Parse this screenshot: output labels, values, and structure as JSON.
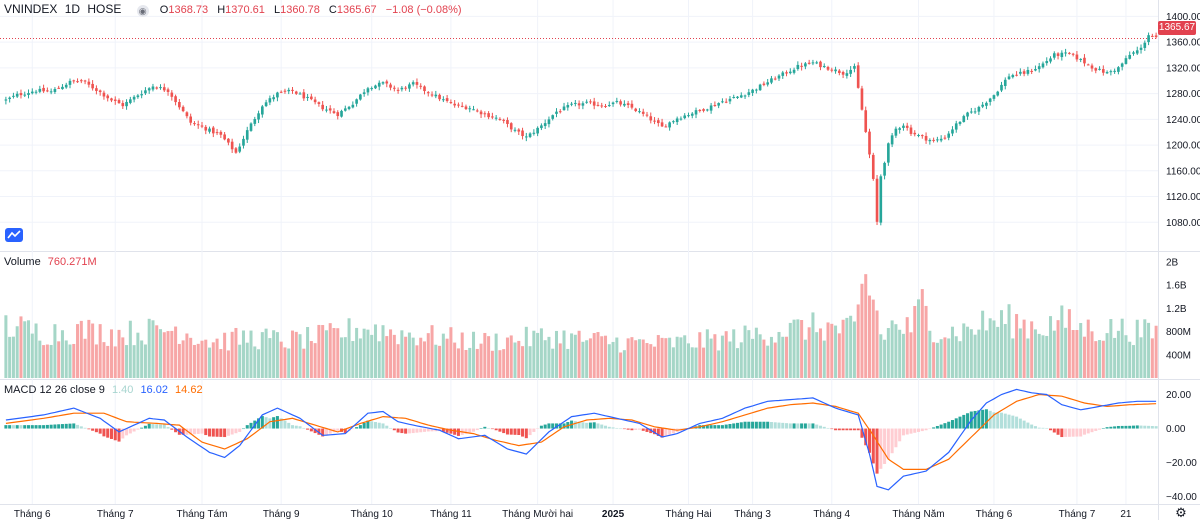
{
  "header": {
    "symbol": "VNINDEX",
    "interval": "1D",
    "exchange": "HOSE",
    "eye_icon": "eye-icon",
    "o_label": "O",
    "o_value": "1368.73",
    "h_label": "H",
    "h_value": "1370.61",
    "l_label": "L",
    "l_value": "1360.78",
    "c_label": "C",
    "c_value": "1365.67",
    "change": "−1.08 (−0.08%)"
  },
  "last_price_tag": "1365.67",
  "volume_legend": {
    "label": "Volume",
    "value": "760.271M"
  },
  "macd_legend": {
    "label": "MACD 12 26 close 9",
    "hist": "1.40",
    "macd": "16.02",
    "signal": "14.62"
  },
  "colors": {
    "up": "#26a69a",
    "down": "#ef5350",
    "up_vol": "#a5d6c7",
    "down_vol": "#f7a6a6",
    "macd_line": "#2962ff",
    "signal_line": "#ff6d00",
    "hist_up_strong": "#26a69a",
    "hist_up_weak": "#b2dfdb",
    "hist_down_strong": "#ef5350",
    "hist_down_weak": "#ffcdd2",
    "grid": "#f0f3fa",
    "last_price": "#e2424f"
  },
  "chart_data": {
    "type": "candlestick",
    "title": "VNINDEX 1D HOSE",
    "price_axis": {
      "ylim": [
        1040,
        1410
      ],
      "ticks": [
        1080,
        1120,
        1160,
        1200,
        1240,
        1280,
        1320,
        1360,
        1400
      ],
      "tick_labels": [
        "1080.00",
        "1120.00",
        "1160.00",
        "1200.00",
        "1240.00",
        "1280.00",
        "1320.00",
        "1360.00",
        "1400.00"
      ]
    },
    "volume_axis": {
      "ylim": [
        0,
        2100000000
      ],
      "ticks": [
        400000000,
        800000000,
        1200000000,
        1600000000,
        2000000000
      ],
      "tick_labels": [
        "400M",
        "800M",
        "1.2B",
        "1.6B",
        "2B"
      ]
    },
    "macd_axis": {
      "ylim": [
        -42,
        25
      ],
      "ticks": [
        20,
        0,
        -20,
        -40
      ],
      "tick_labels": [
        "20.00",
        "0.00",
        "−20.00",
        "−40.00"
      ]
    },
    "x_axis": {
      "tick_labels": [
        "Tháng 6",
        "Tháng 7",
        "Tháng Tám",
        "Tháng 9",
        "Tháng 10",
        "Tháng 11",
        "Tháng Mười hai",
        "2025",
        "Tháng Hai",
        "Tháng 3",
        "Tháng 4",
        "Tháng Năm",
        "Tháng 6",
        "Tháng 7",
        "21"
      ],
      "tick_index": [
        7,
        29,
        52,
        73,
        97,
        118,
        141,
        161,
        181,
        198,
        219,
        242,
        262,
        284,
        297
      ],
      "bold": [
        false,
        false,
        false,
        false,
        false,
        false,
        false,
        true,
        false,
        false,
        false,
        false,
        false,
        false,
        false
      ]
    },
    "close_anchors": [
      [
        0,
        1270
      ],
      [
        3,
        1278
      ],
      [
        8,
        1285
      ],
      [
        12,
        1283
      ],
      [
        17,
        1298
      ],
      [
        20,
        1300
      ],
      [
        24,
        1286
      ],
      [
        28,
        1270
      ],
      [
        31,
        1262
      ],
      [
        35,
        1278
      ],
      [
        39,
        1292
      ],
      [
        43,
        1285
      ],
      [
        46,
        1260
      ],
      [
        49,
        1235
      ],
      [
        52,
        1228
      ],
      [
        57,
        1215
      ],
      [
        61,
        1188
      ],
      [
        64,
        1222
      ],
      [
        68,
        1262
      ],
      [
        72,
        1280
      ],
      [
        76,
        1284
      ],
      [
        80,
        1272
      ],
      [
        84,
        1258
      ],
      [
        88,
        1248
      ],
      [
        92,
        1265
      ],
      [
        96,
        1290
      ],
      [
        100,
        1296
      ],
      [
        104,
        1285
      ],
      [
        108,
        1295
      ],
      [
        112,
        1282
      ],
      [
        116,
        1270
      ],
      [
        119,
        1262
      ],
      [
        123,
        1258
      ],
      [
        127,
        1248
      ],
      [
        131,
        1240
      ],
      [
        135,
        1222
      ],
      [
        138,
        1212
      ],
      [
        142,
        1230
      ],
      [
        146,
        1252
      ],
      [
        150,
        1262
      ],
      [
        154,
        1265
      ],
      [
        158,
        1262
      ],
      [
        162,
        1266
      ],
      [
        166,
        1258
      ],
      [
        170,
        1244
      ],
      [
        174,
        1228
      ],
      [
        178,
        1242
      ],
      [
        182,
        1250
      ],
      [
        186,
        1258
      ],
      [
        190,
        1268
      ],
      [
        194,
        1275
      ],
      [
        198,
        1285
      ],
      [
        202,
        1298
      ],
      [
        206,
        1310
      ],
      [
        210,
        1322
      ],
      [
        214,
        1328
      ],
      [
        218,
        1320
      ],
      [
        222,
        1312
      ],
      [
        225,
        1320
      ],
      [
        227,
        1255
      ],
      [
        228,
        1220
      ],
      [
        229,
        1185
      ],
      [
        230,
        1145
      ],
      [
        231,
        1080
      ],
      [
        232,
        1152
      ],
      [
        233,
        1175
      ],
      [
        234,
        1200
      ],
      [
        236,
        1225
      ],
      [
        238,
        1232
      ],
      [
        240,
        1220
      ],
      [
        243,
        1212
      ],
      [
        246,
        1206
      ],
      [
        249,
        1212
      ],
      [
        252,
        1232
      ],
      [
        255,
        1248
      ],
      [
        258,
        1258
      ],
      [
        262,
        1278
      ],
      [
        266,
        1308
      ],
      [
        270,
        1312
      ],
      [
        274,
        1322
      ],
      [
        278,
        1340
      ],
      [
        282,
        1342
      ],
      [
        285,
        1332
      ],
      [
        289,
        1318
      ],
      [
        292,
        1312
      ],
      [
        295,
        1320
      ],
      [
        298,
        1340
      ],
      [
        301,
        1350
      ],
      [
        303,
        1372
      ],
      [
        305,
        1365.67
      ]
    ],
    "volume_anchors": [
      [
        0,
        900
      ],
      [
        10,
        780
      ],
      [
        20,
        820
      ],
      [
        30,
        760
      ],
      [
        45,
        850
      ],
      [
        55,
        620
      ],
      [
        65,
        700
      ],
      [
        75,
        640
      ],
      [
        85,
        720
      ],
      [
        95,
        870
      ],
      [
        105,
        760
      ],
      [
        115,
        700
      ],
      [
        125,
        620
      ],
      [
        135,
        660
      ],
      [
        145,
        720
      ],
      [
        155,
        650
      ],
      [
        165,
        610
      ],
      [
        175,
        590
      ],
      [
        185,
        640
      ],
      [
        195,
        700
      ],
      [
        205,
        820
      ],
      [
        215,
        880
      ],
      [
        225,
        820
      ],
      [
        228,
        1750
      ],
      [
        229,
        1500
      ],
      [
        230,
        1300
      ],
      [
        231,
        1200
      ],
      [
        232,
        700
      ],
      [
        235,
        900
      ],
      [
        240,
        850
      ],
      [
        243,
        1300
      ],
      [
        245,
        900
      ],
      [
        250,
        780
      ],
      [
        255,
        830
      ],
      [
        260,
        950
      ],
      [
        265,
        1000
      ],
      [
        270,
        920
      ],
      [
        275,
        880
      ],
      [
        280,
        980
      ],
      [
        285,
        860
      ],
      [
        290,
        820
      ],
      [
        295,
        840
      ],
      [
        300,
        800
      ],
      [
        305,
        760
      ]
    ],
    "macd_anchors": [
      [
        0,
        5
      ],
      [
        10,
        8
      ],
      [
        18,
        12
      ],
      [
        25,
        6
      ],
      [
        30,
        -2
      ],
      [
        38,
        6
      ],
      [
        42,
        5
      ],
      [
        48,
        -5
      ],
      [
        54,
        -14
      ],
      [
        58,
        -17
      ],
      [
        62,
        -10
      ],
      [
        68,
        8
      ],
      [
        72,
        12
      ],
      [
        78,
        6
      ],
      [
        84,
        -4
      ],
      [
        90,
        -3
      ],
      [
        96,
        9
      ],
      [
        100,
        10
      ],
      [
        104,
        4
      ],
      [
        108,
        2
      ],
      [
        115,
        -1
      ],
      [
        120,
        -6
      ],
      [
        127,
        -4
      ],
      [
        133,
        -12
      ],
      [
        138,
        -15
      ],
      [
        144,
        -2
      ],
      [
        150,
        7
      ],
      [
        156,
        9
      ],
      [
        162,
        6
      ],
      [
        168,
        3
      ],
      [
        174,
        -5
      ],
      [
        178,
        -3
      ],
      [
        184,
        3
      ],
      [
        190,
        6
      ],
      [
        196,
        12
      ],
      [
        202,
        16
      ],
      [
        208,
        17
      ],
      [
        214,
        18
      ],
      [
        220,
        12
      ],
      [
        226,
        8
      ],
      [
        229,
        -15
      ],
      [
        231,
        -34
      ],
      [
        234,
        -36
      ],
      [
        238,
        -28
      ],
      [
        244,
        -25
      ],
      [
        250,
        -14
      ],
      [
        256,
        5
      ],
      [
        260,
        15
      ],
      [
        264,
        20
      ],
      [
        268,
        23
      ],
      [
        272,
        21
      ],
      [
        276,
        20
      ],
      [
        280,
        14
      ],
      [
        285,
        11
      ],
      [
        290,
        13
      ],
      [
        295,
        15
      ],
      [
        300,
        16
      ],
      [
        305,
        16.02
      ]
    ],
    "signal_anchors": [
      [
        0,
        3
      ],
      [
        10,
        6
      ],
      [
        18,
        9
      ],
      [
        26,
        9
      ],
      [
        32,
        4
      ],
      [
        40,
        3
      ],
      [
        46,
        2
      ],
      [
        52,
        -8
      ],
      [
        58,
        -12
      ],
      [
        64,
        -6
      ],
      [
        70,
        4
      ],
      [
        76,
        6
      ],
      [
        82,
        2
      ],
      [
        88,
        -2
      ],
      [
        94,
        3
      ],
      [
        100,
        7
      ],
      [
        106,
        6
      ],
      [
        112,
        2
      ],
      [
        118,
        -1
      ],
      [
        124,
        -3
      ],
      [
        130,
        -7
      ],
      [
        136,
        -10
      ],
      [
        142,
        -8
      ],
      [
        148,
        1
      ],
      [
        154,
        5
      ],
      [
        160,
        6
      ],
      [
        166,
        5
      ],
      [
        172,
        1
      ],
      [
        178,
        -1
      ],
      [
        184,
        1
      ],
      [
        190,
        4
      ],
      [
        196,
        8
      ],
      [
        202,
        12
      ],
      [
        208,
        14
      ],
      [
        214,
        15
      ],
      [
        220,
        13
      ],
      [
        226,
        9
      ],
      [
        230,
        -4
      ],
      [
        234,
        -18
      ],
      [
        238,
        -24
      ],
      [
        244,
        -24
      ],
      [
        250,
        -18
      ],
      [
        256,
        -5
      ],
      [
        262,
        8
      ],
      [
        268,
        16
      ],
      [
        274,
        20
      ],
      [
        280,
        19
      ],
      [
        286,
        15
      ],
      [
        292,
        13
      ],
      [
        298,
        14
      ],
      [
        305,
        14.62
      ]
    ]
  }
}
